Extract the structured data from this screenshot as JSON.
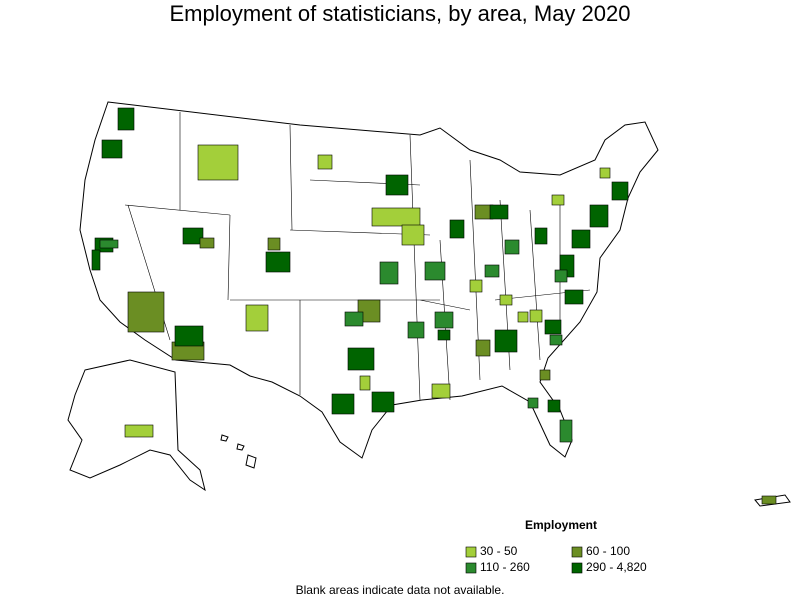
{
  "title": "Employment of statisticians, by area, May 2020",
  "legend": {
    "title": "Employment",
    "items": [
      {
        "label": "30 - 50",
        "color": "#a3cf3a"
      },
      {
        "label": "60 - 100",
        "color": "#6b8e23"
      },
      {
        "label": "110 - 260",
        "color": "#2b8a2e"
      },
      {
        "label": "290 - 4,820",
        "color": "#006400"
      }
    ]
  },
  "footnote": "Blank areas indicate data not available."
}
